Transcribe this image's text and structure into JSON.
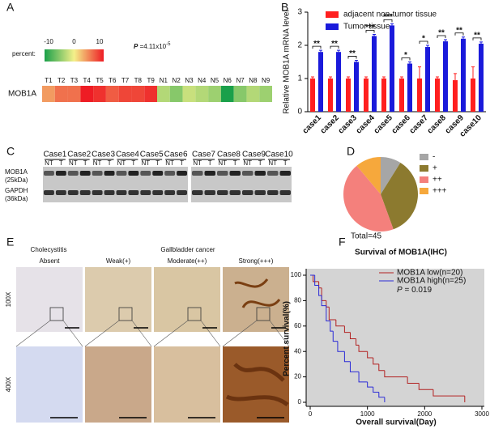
{
  "chart_data": [
    {
      "type": "heatmap",
      "panel": "A",
      "legend_label": "percent:",
      "clim": [
        -10,
        10
      ],
      "cticks": [
        -10,
        0,
        10
      ],
      "colormap": [
        "#1aa04a",
        "#f4f08a",
        "#ee1c24"
      ],
      "p_label": {
        "symbol": "P",
        "text": " =4.11x10",
        "exponent": "-5"
      },
      "row_label": "MOB1A",
      "categories": [
        "T1",
        "T2",
        "T3",
        "T4",
        "T5",
        "T6",
        "T7",
        "T8",
        "T9",
        "N1",
        "N2",
        "N3",
        "N4",
        "N5",
        "N6",
        "N7",
        "N8",
        "N9"
      ],
      "values": [
        4,
        6,
        6,
        10,
        9,
        7,
        8,
        8,
        9,
        -3,
        -5,
        -2,
        -3,
        -4,
        -10,
        -5,
        -3,
        -4
      ]
    },
    {
      "type": "bar",
      "panel": "B",
      "y_label": "Relative MOB1A mRNA level",
      "categories": [
        "case1",
        "case2",
        "case3",
        "case4",
        "case5",
        "case6",
        "case7",
        "case8",
        "case9",
        "case10"
      ],
      "series": [
        {
          "name": "adjacent non-tumor tissue",
          "color": "#ff1f1f",
          "values": [
            1,
            1,
            1,
            1,
            1,
            1,
            1,
            1,
            0.95,
            1
          ],
          "errors": [
            0.05,
            0.05,
            0.05,
            0.05,
            0.05,
            0.05,
            0.35,
            0.05,
            0.2,
            0.35
          ]
        },
        {
          "name": "Tumor tissue",
          "color": "#1a1adb",
          "values": [
            1.8,
            1.8,
            1.5,
            2.28,
            2.6,
            1.45,
            1.95,
            2.12,
            2.2,
            2.05
          ],
          "errors": [
            0.05,
            0.05,
            0.05,
            0.05,
            0.05,
            0.05,
            0.05,
            0.05,
            0.05,
            0.05
          ]
        }
      ],
      "significance": [
        "**",
        "**",
        "**",
        "***",
        "***",
        "*",
        "*",
        "**",
        "**",
        "**"
      ],
      "ylim": [
        0,
        3
      ],
      "yticks": [
        0,
        1,
        2,
        3
      ]
    },
    {
      "type": "pie",
      "panel": "D",
      "labels": [
        "-",
        "+",
        "++",
        "+++"
      ],
      "values": [
        4,
        16,
        20,
        5
      ],
      "colors": [
        "#a6a6a6",
        "#8c7a2f",
        "#f4807c",
        "#f6a83c"
      ],
      "total_label": "Total=45"
    },
    {
      "type": "line",
      "panel": "F",
      "title": "Survival of MOB1A(IHC)",
      "x_label": "Overall survival(Day)",
      "y_label": "Percent survival(%)",
      "p_label": {
        "symbol": "P",
        "text": " = 0.019"
      },
      "series": [
        {
          "name": "MOB1A low(n=20)",
          "color": "#b22222",
          "x": [
            0,
            50,
            150,
            200,
            280,
            330,
            450,
            600,
            700,
            800,
            850,
            1000,
            1100,
            1200,
            1300,
            1700,
            1900,
            2150,
            2700
          ],
          "values": [
            100,
            95,
            90,
            80,
            75,
            65,
            60,
            55,
            50,
            45,
            40,
            35,
            30,
            25,
            20,
            15,
            10,
            5,
            0
          ]
        },
        {
          "name": "MOB1A high(n=25)",
          "color": "#2b2bd6",
          "x": [
            0,
            80,
            150,
            200,
            280,
            350,
            400,
            480,
            600,
            700,
            850,
            1000,
            1100,
            1200,
            1300
          ],
          "values": [
            100,
            92,
            84,
            76,
            64,
            56,
            48,
            40,
            32,
            24,
            16,
            12,
            8,
            4,
            0
          ]
        }
      ],
      "xlim": [
        0,
        3000
      ],
      "xticks": [
        0,
        1000,
        2000,
        3000
      ],
      "ylim": [
        0,
        100
      ],
      "yticks": [
        0,
        20,
        40,
        60,
        80,
        100
      ]
    }
  ],
  "blot": {
    "panel": "C",
    "cases": [
      "Case1",
      "Case2",
      "Case3",
      "Case4",
      "Case5",
      "Case6",
      "Case7",
      "Case8",
      "Case9",
      "Case10"
    ],
    "lane_labels": [
      "NT",
      "T"
    ],
    "row_labels": [
      [
        "MOB1A",
        "(25kDa)"
      ],
      [
        "GAPDH",
        "(36kDa)"
      ]
    ]
  },
  "ihc": {
    "panel": "E",
    "groups": [
      "Cholecystitis",
      "Gallbladder cancer"
    ],
    "columns": [
      "Absent",
      "Weak(+)",
      "Moderate(++)",
      "Strong(+++)"
    ],
    "rows": [
      "100X",
      "400X"
    ]
  }
}
